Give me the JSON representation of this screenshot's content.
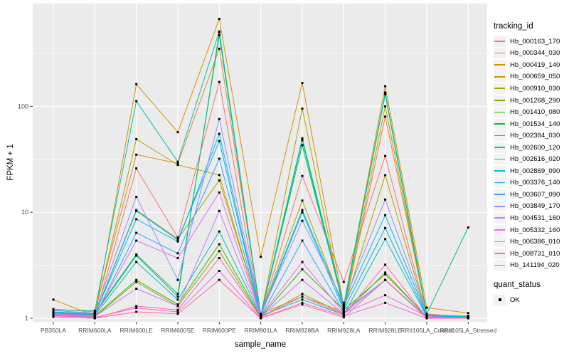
{
  "chart_data": {
    "type": "line",
    "title": "",
    "xlabel": "sample_name",
    "ylabel": "FPKM + 1",
    "y_scale": "log10",
    "y_ticks": [
      1,
      10,
      100
    ],
    "y_minor_ticks": [
      3.162,
      31.62,
      316.2
    ],
    "ylim": [
      0.9,
      930
    ],
    "grid": true,
    "panel_color": "#EBEBEB",
    "grid_color": "#FFFFFF",
    "tick_label_color": "#4D4D4D",
    "point_marker": "black-square",
    "legend_position": "right",
    "legend_title": "tracking_id",
    "quant_legend": {
      "title": "quant_status",
      "items": [
        {
          "label": "OK",
          "marker": "black-square"
        }
      ]
    },
    "categories": [
      "PB350LA",
      "RRIM600LA",
      "RRIM600LE",
      "RRIM600SE",
      "RRIM600PE",
      "RRIM901LA",
      "RRIM928BA",
      "RRIM928LA",
      "RRIM928LE",
      "RRII105LA_Control",
      "RRII105LA_Stressed"
    ],
    "series": [
      {
        "name": "Hb_000163_170",
        "color": "#F8766D",
        "values": [
          1.05,
          1.02,
          26,
          5.8,
          170,
          1.05,
          22,
          2.2,
          34,
          1.05,
          1.0
        ]
      },
      {
        "name": "Hb_000344_030",
        "color": "#EA8331",
        "values": [
          1.22,
          1.15,
          35,
          29,
          350,
          1.1,
          1.6,
          1.15,
          80,
          1.1,
          1.02
        ]
      },
      {
        "name": "Hb_000419_140",
        "color": "#D89000",
        "values": [
          1.5,
          1.05,
          162,
          57,
          670,
          3.8,
          166,
          1.3,
          155,
          1.26,
          1.12
        ]
      },
      {
        "name": "Hb_000659_050",
        "color": "#C09B00",
        "values": [
          1.1,
          1.1,
          49,
          28,
          22.5,
          1.05,
          95,
          1.2,
          100,
          1.08,
          1.05
        ]
      },
      {
        "name": "Hb_000910_030",
        "color": "#A3A500",
        "values": [
          1.12,
          1.08,
          10.5,
          5.6,
          20,
          1.08,
          12.9,
          1.25,
          22.4,
          1.05,
          1.02
        ]
      },
      {
        "name": "Hb_001268_290",
        "color": "#7CAE00",
        "values": [
          1.06,
          1.03,
          2.2,
          1.3,
          4.3,
          1.02,
          1.7,
          1.1,
          2.7,
          1.03,
          1.0
        ]
      },
      {
        "name": "Hb_001410_080",
        "color": "#39B600",
        "values": [
          1.08,
          1.05,
          2.3,
          1.35,
          5.0,
          1.03,
          2.9,
          1.2,
          2.6,
          1.04,
          1.01
        ]
      },
      {
        "name": "Hb_001534_140",
        "color": "#00BB4E",
        "values": [
          1.1,
          1.12,
          4.0,
          1.7,
          470,
          1.06,
          43,
          1.3,
          130,
          1.06,
          1.03
        ]
      },
      {
        "name": "Hb_002384_030",
        "color": "#00C087",
        "values": [
          1.15,
          1.1,
          3.9,
          1.6,
          500,
          1.04,
          48,
          1.25,
          135,
          1.1,
          7.2
        ]
      },
      {
        "name": "Hb_002600_120",
        "color": "#00C1A9",
        "values": [
          1.2,
          1.18,
          112,
          30,
          510,
          1.07,
          50,
          1.35,
          132,
          1.05,
          1.04
        ]
      },
      {
        "name": "Hb_002616_020",
        "color": "#00BFC4",
        "values": [
          1.1,
          1.06,
          3.4,
          1.5,
          6.6,
          1.05,
          1.5,
          1.08,
          5.6,
          1.04,
          1.0
        ]
      },
      {
        "name": "Hb_002869_090",
        "color": "#00BAE0",
        "values": [
          1.14,
          1.1,
          8.6,
          5.3,
          55,
          1.08,
          10.5,
          1.3,
          9.4,
          1.07,
          1.02
        ]
      },
      {
        "name": "Hb_003376_140",
        "color": "#00B0F6",
        "values": [
          1.12,
          1.08,
          10.3,
          5.5,
          47,
          1.06,
          10,
          1.2,
          7.1,
          1.05,
          1.01
        ]
      },
      {
        "name": "Hb_003607_090",
        "color": "#35A2FF",
        "values": [
          1.1,
          1.05,
          6.4,
          4.1,
          32,
          1.04,
          5.4,
          1.15,
          2.3,
          1.03,
          1.0
        ]
      },
      {
        "name": "Hb_003849_170",
        "color": "#9590FF",
        "values": [
          1.18,
          1.12,
          14,
          2.3,
          76,
          1.1,
          8.3,
          1.4,
          13.2,
          1.08,
          1.05
        ]
      },
      {
        "name": "Hb_004531_160",
        "color": "#C77CFF",
        "values": [
          1.08,
          1.04,
          1.9,
          1.3,
          10.3,
          1.03,
          2.3,
          1.1,
          2.3,
          1.02,
          1.0
        ]
      },
      {
        "name": "Hb_005332_160",
        "color": "#E76BF3",
        "values": [
          1.1,
          1.06,
          5.4,
          3.7,
          15.4,
          1.05,
          3.4,
          1.12,
          1.65,
          1.04,
          1.01
        ]
      },
      {
        "name": "Hb_006386_010",
        "color": "#FA62DB",
        "values": [
          1.05,
          1.02,
          1.25,
          1.15,
          2.8,
          1.0,
          1.4,
          1.05,
          1.4,
          1.0,
          1.0
        ]
      },
      {
        "name": "Hb_008731_010",
        "color": "#FF62BC",
        "values": [
          1.12,
          1.0,
          1.3,
          1.2,
          3.7,
          1.02,
          1.6,
          1.08,
          3.2,
          1.02,
          1.0
        ]
      },
      {
        "name": "Hb_141194_020",
        "color": "#FF6A98",
        "values": [
          1.03,
          1.0,
          1.15,
          1.1,
          2.3,
          1.0,
          1.35,
          1.02,
          2.3,
          1.0,
          1.0
        ]
      }
    ]
  }
}
